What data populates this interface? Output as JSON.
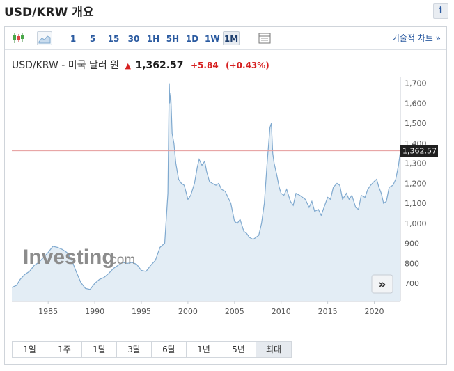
{
  "header": {
    "title": "USD/KRW 개요",
    "info_label": "i"
  },
  "toolbar": {
    "intervals": [
      "1",
      "5",
      "15",
      "30",
      "1H",
      "5H",
      "1D",
      "1W",
      "1M"
    ],
    "active_interval": "1M",
    "tech_chart_label": "기술적 차트 »"
  },
  "quote": {
    "name": "USD/KRW - 미국 달러 원",
    "arrow": "▲",
    "price": "1,362.57",
    "change": "+5.84",
    "change_pct": "(+0.43%)",
    "up_color": "#d62020"
  },
  "watermark": {
    "brand": "Investing",
    "suffix": ".com"
  },
  "expand_label": "»",
  "range_buttons": [
    "1일",
    "1주",
    "1달",
    "3달",
    "6달",
    "1년",
    "5년",
    "최대"
  ],
  "active_range": "최대",
  "chart_data": {
    "type": "area",
    "x_ticks": [
      "1985",
      "1990",
      "1995",
      "2000",
      "2005",
      "2010",
      "2015",
      "2020"
    ],
    "y_ticks": [
      "700",
      "800",
      "900",
      "1,000",
      "1,100",
      "1,200",
      "1,300",
      "1,400",
      "1,500",
      "1,600",
      "1,700"
    ],
    "ylim": [
      610,
      1730
    ],
    "xlim": [
      1981.1,
      2022.8
    ],
    "last_value_label": "1,362.57",
    "last_value": 1362.57,
    "line_color": "#7fa9cf",
    "fill_color": "#e3edf5",
    "price_line_color": "#e59a9a",
    "series": [
      {
        "x": [
          1981.1,
          1981.6,
          1982.0,
          1982.5,
          1983.0,
          1983.5,
          1984.0,
          1984.5,
          1985.0,
          1985.5,
          1986.0,
          1986.5,
          1987.0,
          1987.5,
          1988.0,
          1988.5,
          1989.0,
          1989.5,
          1990.0,
          1990.5,
          1991.0,
          1991.5,
          1992.0,
          1992.5,
          1993.0,
          1993.5,
          1994.0,
          1994.5,
          1995.0,
          1995.5,
          1996.0,
          1996.5,
          1997.0,
          1997.5,
          1997.85,
          1997.95,
          1998.0,
          1998.05,
          1998.15,
          1998.3,
          1998.5,
          1998.7,
          1999.0,
          1999.3,
          1999.6,
          2000.0,
          2000.3,
          2000.7,
          2001.0,
          2001.2,
          2001.5,
          2001.8,
          2002.0,
          2002.3,
          2002.6,
          2003.0,
          2003.3,
          2003.6,
          2004.0,
          2004.3,
          2004.6,
          2005.0,
          2005.3,
          2005.6,
          2006.0,
          2006.3,
          2006.6,
          2007.0,
          2007.3,
          2007.6,
          2007.9,
          2008.2,
          2008.5,
          2008.8,
          2008.95,
          2009.1,
          2009.25,
          2009.5,
          2009.8,
          2010.0,
          2010.3,
          2010.6,
          2011.0,
          2011.3,
          2011.6,
          2012.0,
          2012.3,
          2012.6,
          2013.0,
          2013.3,
          2013.6,
          2014.0,
          2014.3,
          2014.6,
          2015.0,
          2015.3,
          2015.6,
          2016.0,
          2016.3,
          2016.6,
          2017.0,
          2017.3,
          2017.6,
          2018.0,
          2018.3,
          2018.6,
          2019.0,
          2019.3,
          2019.6,
          2020.0,
          2020.25,
          2020.5,
          2020.75,
          2021.0,
          2021.3,
          2021.6,
          2022.0,
          2022.3,
          2022.6,
          2022.8
        ],
        "values": [
          680,
          690,
          720,
          745,
          760,
          790,
          805,
          830,
          855,
          885,
          880,
          870,
          855,
          820,
          760,
          705,
          675,
          670,
          700,
          720,
          730,
          750,
          775,
          790,
          805,
          800,
          805,
          795,
          765,
          760,
          790,
          815,
          880,
          900,
          1150,
          1550,
          1700,
          1600,
          1650,
          1450,
          1400,
          1300,
          1220,
          1200,
          1190,
          1120,
          1140,
          1200,
          1280,
          1320,
          1290,
          1310,
          1260,
          1210,
          1200,
          1190,
          1200,
          1170,
          1160,
          1130,
          1100,
          1010,
          1000,
          1020,
          960,
          950,
          930,
          920,
          930,
          940,
          1000,
          1100,
          1300,
          1480,
          1500,
          1350,
          1300,
          1250,
          1180,
          1150,
          1140,
          1170,
          1110,
          1090,
          1150,
          1140,
          1130,
          1120,
          1080,
          1110,
          1060,
          1070,
          1040,
          1080,
          1130,
          1120,
          1180,
          1200,
          1190,
          1120,
          1150,
          1120,
          1140,
          1080,
          1070,
          1140,
          1130,
          1170,
          1190,
          1210,
          1220,
          1180,
          1150,
          1100,
          1110,
          1180,
          1190,
          1220,
          1290,
          1360
        ]
      }
    ]
  }
}
